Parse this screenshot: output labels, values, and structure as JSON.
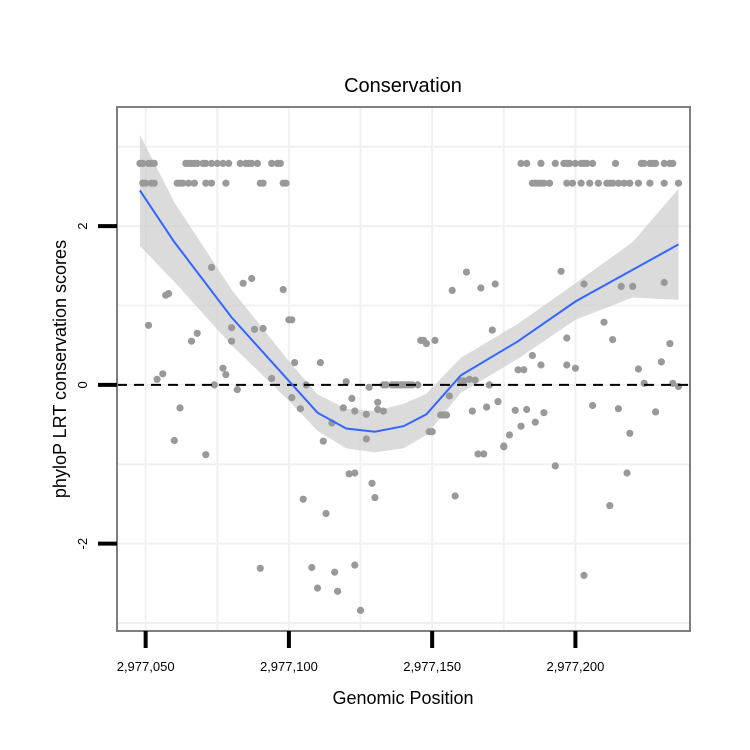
{
  "chart_data": {
    "type": "scatter",
    "title": "Conservation",
    "xlabel": "Genomic Position",
    "ylabel": "phyloP LRT conservation scores",
    "xlim": [
      2977040,
      2977240
    ],
    "ylim": [
      -3.1,
      3.5
    ],
    "x_ticks": [
      2977050,
      2977100,
      2977150,
      2977200
    ],
    "x_tick_labels": [
      "2,977,050",
      "2,977,100",
      "2,977,150",
      "2,977,200"
    ],
    "y_ticks": [
      -2,
      0,
      2
    ],
    "y_tick_labels": [
      "-2",
      "0",
      "2"
    ],
    "reference_line": {
      "y": 0,
      "style": "dashed"
    },
    "colors": {
      "points": "#999999",
      "smooth": "#3366ff",
      "ribbon": "#cccccc",
      "frame": "#7f7f7f",
      "grid": "#f0f0f0"
    },
    "points": [
      [
        2977048,
        2.79
      ],
      [
        2977049,
        2.79
      ],
      [
        2977051,
        2.79
      ],
      [
        2977052,
        2.79
      ],
      [
        2977053,
        2.79
      ],
      [
        2977064,
        2.79
      ],
      [
        2977065,
        2.79
      ],
      [
        2977066,
        2.79
      ],
      [
        2977067,
        2.79
      ],
      [
        2977068,
        2.79
      ],
      [
        2977070,
        2.79
      ],
      [
        2977071,
        2.79
      ],
      [
        2977073,
        2.79
      ],
      [
        2977075,
        2.79
      ],
      [
        2977077,
        2.79
      ],
      [
        2977079,
        2.79
      ],
      [
        2977083,
        2.79
      ],
      [
        2977085,
        2.79
      ],
      [
        2977086,
        2.79
      ],
      [
        2977087,
        2.79
      ],
      [
        2977089,
        2.79
      ],
      [
        2977094,
        2.79
      ],
      [
        2977096,
        2.79
      ],
      [
        2977097,
        2.79
      ],
      [
        2977049,
        2.54
      ],
      [
        2977050,
        2.54
      ],
      [
        2977052,
        2.54
      ],
      [
        2977053,
        2.54
      ],
      [
        2977061,
        2.54
      ],
      [
        2977062,
        2.54
      ],
      [
        2977063,
        2.54
      ],
      [
        2977065,
        2.54
      ],
      [
        2977067,
        2.54
      ],
      [
        2977071,
        2.54
      ],
      [
        2977073,
        2.54
      ],
      [
        2977078,
        2.54
      ],
      [
        2977090,
        2.54
      ],
      [
        2977091,
        2.54
      ],
      [
        2977098,
        2.54
      ],
      [
        2977099,
        2.54
      ],
      [
        2977181,
        2.79
      ],
      [
        2977183,
        2.79
      ],
      [
        2977188,
        2.79
      ],
      [
        2977193,
        2.79
      ],
      [
        2977196,
        2.79
      ],
      [
        2977197,
        2.79
      ],
      [
        2977198,
        2.79
      ],
      [
        2977200,
        2.79
      ],
      [
        2977202,
        2.79
      ],
      [
        2977203,
        2.79
      ],
      [
        2977204,
        2.79
      ],
      [
        2977206,
        2.79
      ],
      [
        2977214,
        2.79
      ],
      [
        2977223,
        2.79
      ],
      [
        2977224,
        2.79
      ],
      [
        2977226,
        2.79
      ],
      [
        2977227,
        2.79
      ],
      [
        2977228,
        2.79
      ],
      [
        2977231,
        2.79
      ],
      [
        2977233,
        2.79
      ],
      [
        2977234,
        2.79
      ],
      [
        2977185,
        2.54
      ],
      [
        2977186,
        2.54
      ],
      [
        2977187,
        2.54
      ],
      [
        2977188,
        2.54
      ],
      [
        2977189,
        2.54
      ],
      [
        2977191,
        2.54
      ],
      [
        2977197,
        2.54
      ],
      [
        2977199,
        2.54
      ],
      [
        2977202,
        2.54
      ],
      [
        2977205,
        2.54
      ],
      [
        2977208,
        2.54
      ],
      [
        2977211,
        2.54
      ],
      [
        2977212,
        2.54
      ],
      [
        2977213,
        2.54
      ],
      [
        2977215,
        2.54
      ],
      [
        2977217,
        2.54
      ],
      [
        2977219,
        2.54
      ],
      [
        2977222,
        2.54
      ],
      [
        2977226,
        2.54
      ],
      [
        2977231,
        2.54
      ],
      [
        2977236,
        2.54
      ],
      [
        2977051,
        0.75
      ],
      [
        2977054,
        0.07
      ],
      [
        2977056,
        0.14
      ],
      [
        2977057,
        1.13
      ],
      [
        2977058,
        1.15
      ],
      [
        2977060,
        -0.7
      ],
      [
        2977062,
        -0.29
      ],
      [
        2977066,
        0.55
      ],
      [
        2977068,
        0.65
      ],
      [
        2977071,
        -0.88
      ],
      [
        2977073,
        1.48
      ],
      [
        2977074,
        0.0
      ],
      [
        2977077,
        0.21
      ],
      [
        2977078,
        0.13
      ],
      [
        2977080,
        0.55
      ],
      [
        2977080,
        0.72
      ],
      [
        2977082,
        -0.06
      ],
      [
        2977084,
        1.28
      ],
      [
        2977087,
        1.34
      ],
      [
        2977088,
        0.7
      ],
      [
        2977090,
        -2.31
      ],
      [
        2977091,
        0.71
      ],
      [
        2977094,
        0.08
      ],
      [
        2977098,
        1.2
      ],
      [
        2977100,
        0.82
      ],
      [
        2977101,
        0.82
      ],
      [
        2977102,
        0.28
      ],
      [
        2977101,
        -0.16
      ],
      [
        2977104,
        -0.3
      ],
      [
        2977105,
        -1.44
      ],
      [
        2977106,
        0.0
      ],
      [
        2977108,
        -2.3
      ],
      [
        2977110,
        -2.56
      ],
      [
        2977111,
        0.28
      ],
      [
        2977112,
        -0.71
      ],
      [
        2977113,
        -1.62
      ],
      [
        2977115,
        -0.48
      ],
      [
        2977116,
        -2.36
      ],
      [
        2977117,
        -2.6
      ],
      [
        2977119,
        -0.29
      ],
      [
        2977120,
        0.04
      ],
      [
        2977121,
        -1.12
      ],
      [
        2977122,
        -0.17
      ],
      [
        2977123,
        -0.33
      ],
      [
        2977123,
        -1.11
      ],
      [
        2977123,
        -2.27
      ],
      [
        2977125,
        -2.84
      ],
      [
        2977127,
        -0.37
      ],
      [
        2977127,
        -0.68
      ],
      [
        2977128,
        -0.03
      ],
      [
        2977129,
        -1.24
      ],
      [
        2977130,
        -1.42
      ],
      [
        2977131,
        -0.22
      ],
      [
        2977131,
        -0.31
      ],
      [
        2977133,
        -0.33
      ],
      [
        2977133,
        0.0
      ],
      [
        2977134,
        0.0
      ],
      [
        2977136,
        0.0
      ],
      [
        2977137,
        0.0
      ],
      [
        2977138,
        0.0
      ],
      [
        2977139,
        0.0
      ],
      [
        2977140,
        0.0
      ],
      [
        2977141,
        0.0
      ],
      [
        2977142,
        0.0
      ],
      [
        2977143,
        0.0
      ],
      [
        2977145,
        0.0
      ],
      [
        2977146,
        0.56
      ],
      [
        2977147,
        0.56
      ],
      [
        2977148,
        0.52
      ],
      [
        2977149,
        -0.59
      ],
      [
        2977150,
        -0.59
      ],
      [
        2977151,
        0.56
      ],
      [
        2977153,
        -0.38
      ],
      [
        2977154,
        -0.38
      ],
      [
        2977155,
        -0.38
      ],
      [
        2977156,
        -0.14
      ],
      [
        2977157,
        1.19
      ],
      [
        2977158,
        -1.4
      ],
      [
        2977160,
        0.05
      ],
      [
        2977161,
        0.05
      ],
      [
        2977162,
        1.42
      ],
      [
        2977163,
        0.07
      ],
      [
        2977164,
        -0.33
      ],
      [
        2977165,
        0.06
      ],
      [
        2977166,
        -0.87
      ],
      [
        2977167,
        1.22
      ],
      [
        2977168,
        -0.87
      ],
      [
        2977169,
        -0.28
      ],
      [
        2977170,
        0.0
      ],
      [
        2977171,
        0.69
      ],
      [
        2977172,
        1.27
      ],
      [
        2977173,
        -0.21
      ],
      [
        2977175,
        -0.77
      ],
      [
        2977175,
        -0.78
      ],
      [
        2977177,
        -0.63
      ],
      [
        2977179,
        -0.32
      ],
      [
        2977180,
        0.19
      ],
      [
        2977181,
        -0.52
      ],
      [
        2977182,
        0.19
      ],
      [
        2977183,
        -0.31
      ],
      [
        2977185,
        0.37
      ],
      [
        2977186,
        -0.47
      ],
      [
        2977188,
        0.25
      ],
      [
        2977189,
        -0.35
      ],
      [
        2977193,
        -1.02
      ],
      [
        2977195,
        1.43
      ],
      [
        2977197,
        0.59
      ],
      [
        2977197,
        0.25
      ],
      [
        2977200,
        0.21
      ],
      [
        2977203,
        1.27
      ],
      [
        2977203,
        -2.4
      ],
      [
        2977206,
        -0.26
      ],
      [
        2977210,
        0.79
      ],
      [
        2977212,
        -1.52
      ],
      [
        2977213,
        0.57
      ],
      [
        2977215,
        -0.3
      ],
      [
        2977216,
        1.24
      ],
      [
        2977218,
        -1.11
      ],
      [
        2977219,
        -0.61
      ],
      [
        2977220,
        1.24
      ],
      [
        2977222,
        0.2
      ],
      [
        2977224,
        0.02
      ],
      [
        2977228,
        -0.34
      ],
      [
        2977230,
        0.29
      ],
      [
        2977231,
        1.29
      ],
      [
        2977233,
        0.52
      ],
      [
        2977236,
        -0.02
      ],
      [
        2977234,
        0.02
      ]
    ],
    "smooth": {
      "x": [
        2977048,
        2977060,
        2977080,
        2977100,
        2977110,
        2977120,
        2977130,
        2977140,
        2977148,
        2977160,
        2977180,
        2977200,
        2977220,
        2977236
      ],
      "y": [
        2.45,
        1.8,
        0.85,
        0.05,
        -0.35,
        -0.55,
        -0.59,
        -0.52,
        -0.37,
        0.12,
        0.55,
        1.05,
        1.45,
        1.77
      ],
      "lower": [
        1.75,
        1.3,
        0.5,
        -0.2,
        -0.58,
        -0.8,
        -0.85,
        -0.8,
        -0.63,
        -0.1,
        0.33,
        0.82,
        1.1,
        1.07
      ],
      "upper": [
        3.15,
        2.3,
        1.2,
        0.3,
        -0.12,
        -0.3,
        -0.33,
        -0.24,
        -0.11,
        0.34,
        0.77,
        1.28,
        1.8,
        2.47
      ]
    }
  }
}
